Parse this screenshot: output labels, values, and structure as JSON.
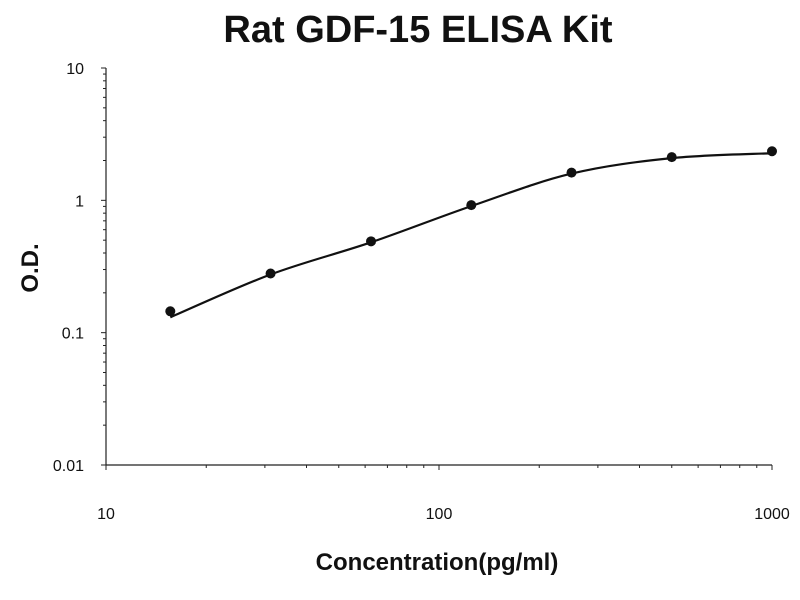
{
  "chart_data": {
    "type": "scatter",
    "title": "Rat GDF-15 ELISA Kit",
    "xlabel": "Concentration(pg/ml)",
    "ylabel": "O.D.",
    "xscale": "log",
    "yscale": "log",
    "xlim": [
      10,
      1000
    ],
    "ylim": [
      0.01,
      10
    ],
    "x_ticks": [
      "10",
      "100",
      "1000"
    ],
    "y_ticks": [
      "10",
      "1",
      "0.1",
      "0.01"
    ],
    "grid": false,
    "legend": "none",
    "series": [
      {
        "x": [
          15.6,
          31.2,
          62.5,
          125,
          250,
          500,
          1000
        ],
        "y": [
          0.145,
          0.28,
          0.49,
          0.92,
          1.62,
          2.12,
          2.35
        ],
        "fit_line": true
      }
    ],
    "colors": {
      "points": "#111111",
      "line": "#111111"
    }
  }
}
